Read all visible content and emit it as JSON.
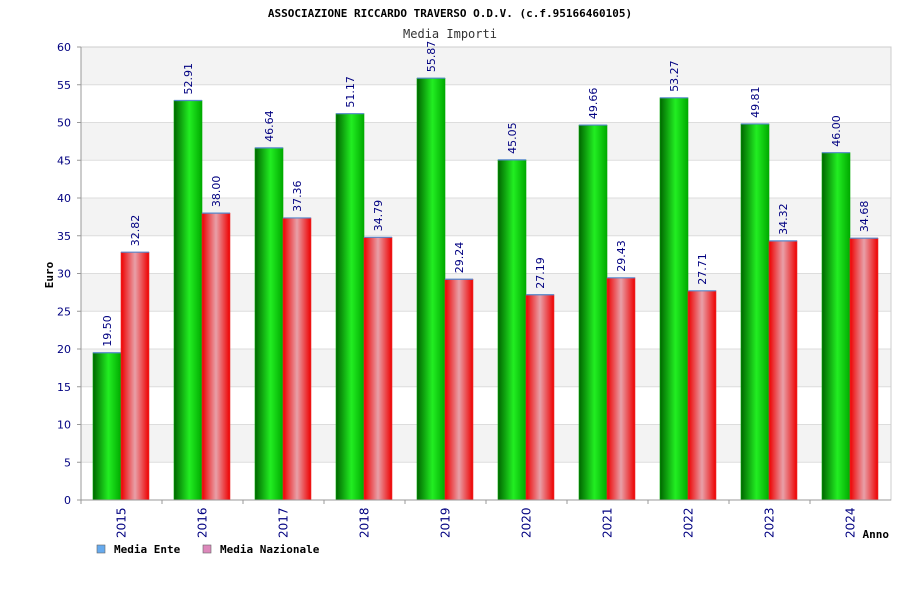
{
  "chart_data": {
    "type": "bar",
    "title": "ASSOCIAZIONE RICCARDO TRAVERSO O.D.V. (c.f.95166460105)",
    "subtitle": "Media Importi",
    "xlabel": "Anno",
    "ylabel": "Euro",
    "ylim": [
      0,
      60
    ],
    "yticks": [
      "0",
      "5",
      "10",
      "15",
      "20",
      "25",
      "30",
      "35",
      "40",
      "45",
      "50",
      "55",
      "60"
    ],
    "grid": true,
    "legend_position": "bottom-left",
    "categories": [
      "2015",
      "2016",
      "2017",
      "2018",
      "2019",
      "2020",
      "2021",
      "2022",
      "2023",
      "2024"
    ],
    "series": [
      {
        "name": "Media Ente",
        "color": "#00bb00",
        "legend_color": "#66aaee",
        "values": [
          19.5,
          52.91,
          46.64,
          51.17,
          55.87,
          45.05,
          49.66,
          53.27,
          49.81,
          46.0
        ],
        "labels": [
          "19.50",
          "52.91",
          "46.64",
          "51.17",
          "55.87",
          "45.05",
          "49.66",
          "53.27",
          "49.81",
          "46.00"
        ]
      },
      {
        "name": "Media Nazionale",
        "color": "#ee1111",
        "legend_color": "#dd88bb",
        "values": [
          32.82,
          38.0,
          37.36,
          34.79,
          29.24,
          27.19,
          29.43,
          27.71,
          34.32,
          34.68
        ],
        "labels": [
          "32.82",
          "38.00",
          "37.36",
          "34.79",
          "29.24",
          "27.19",
          "29.43",
          "27.71",
          "34.32",
          "34.68"
        ]
      }
    ]
  }
}
